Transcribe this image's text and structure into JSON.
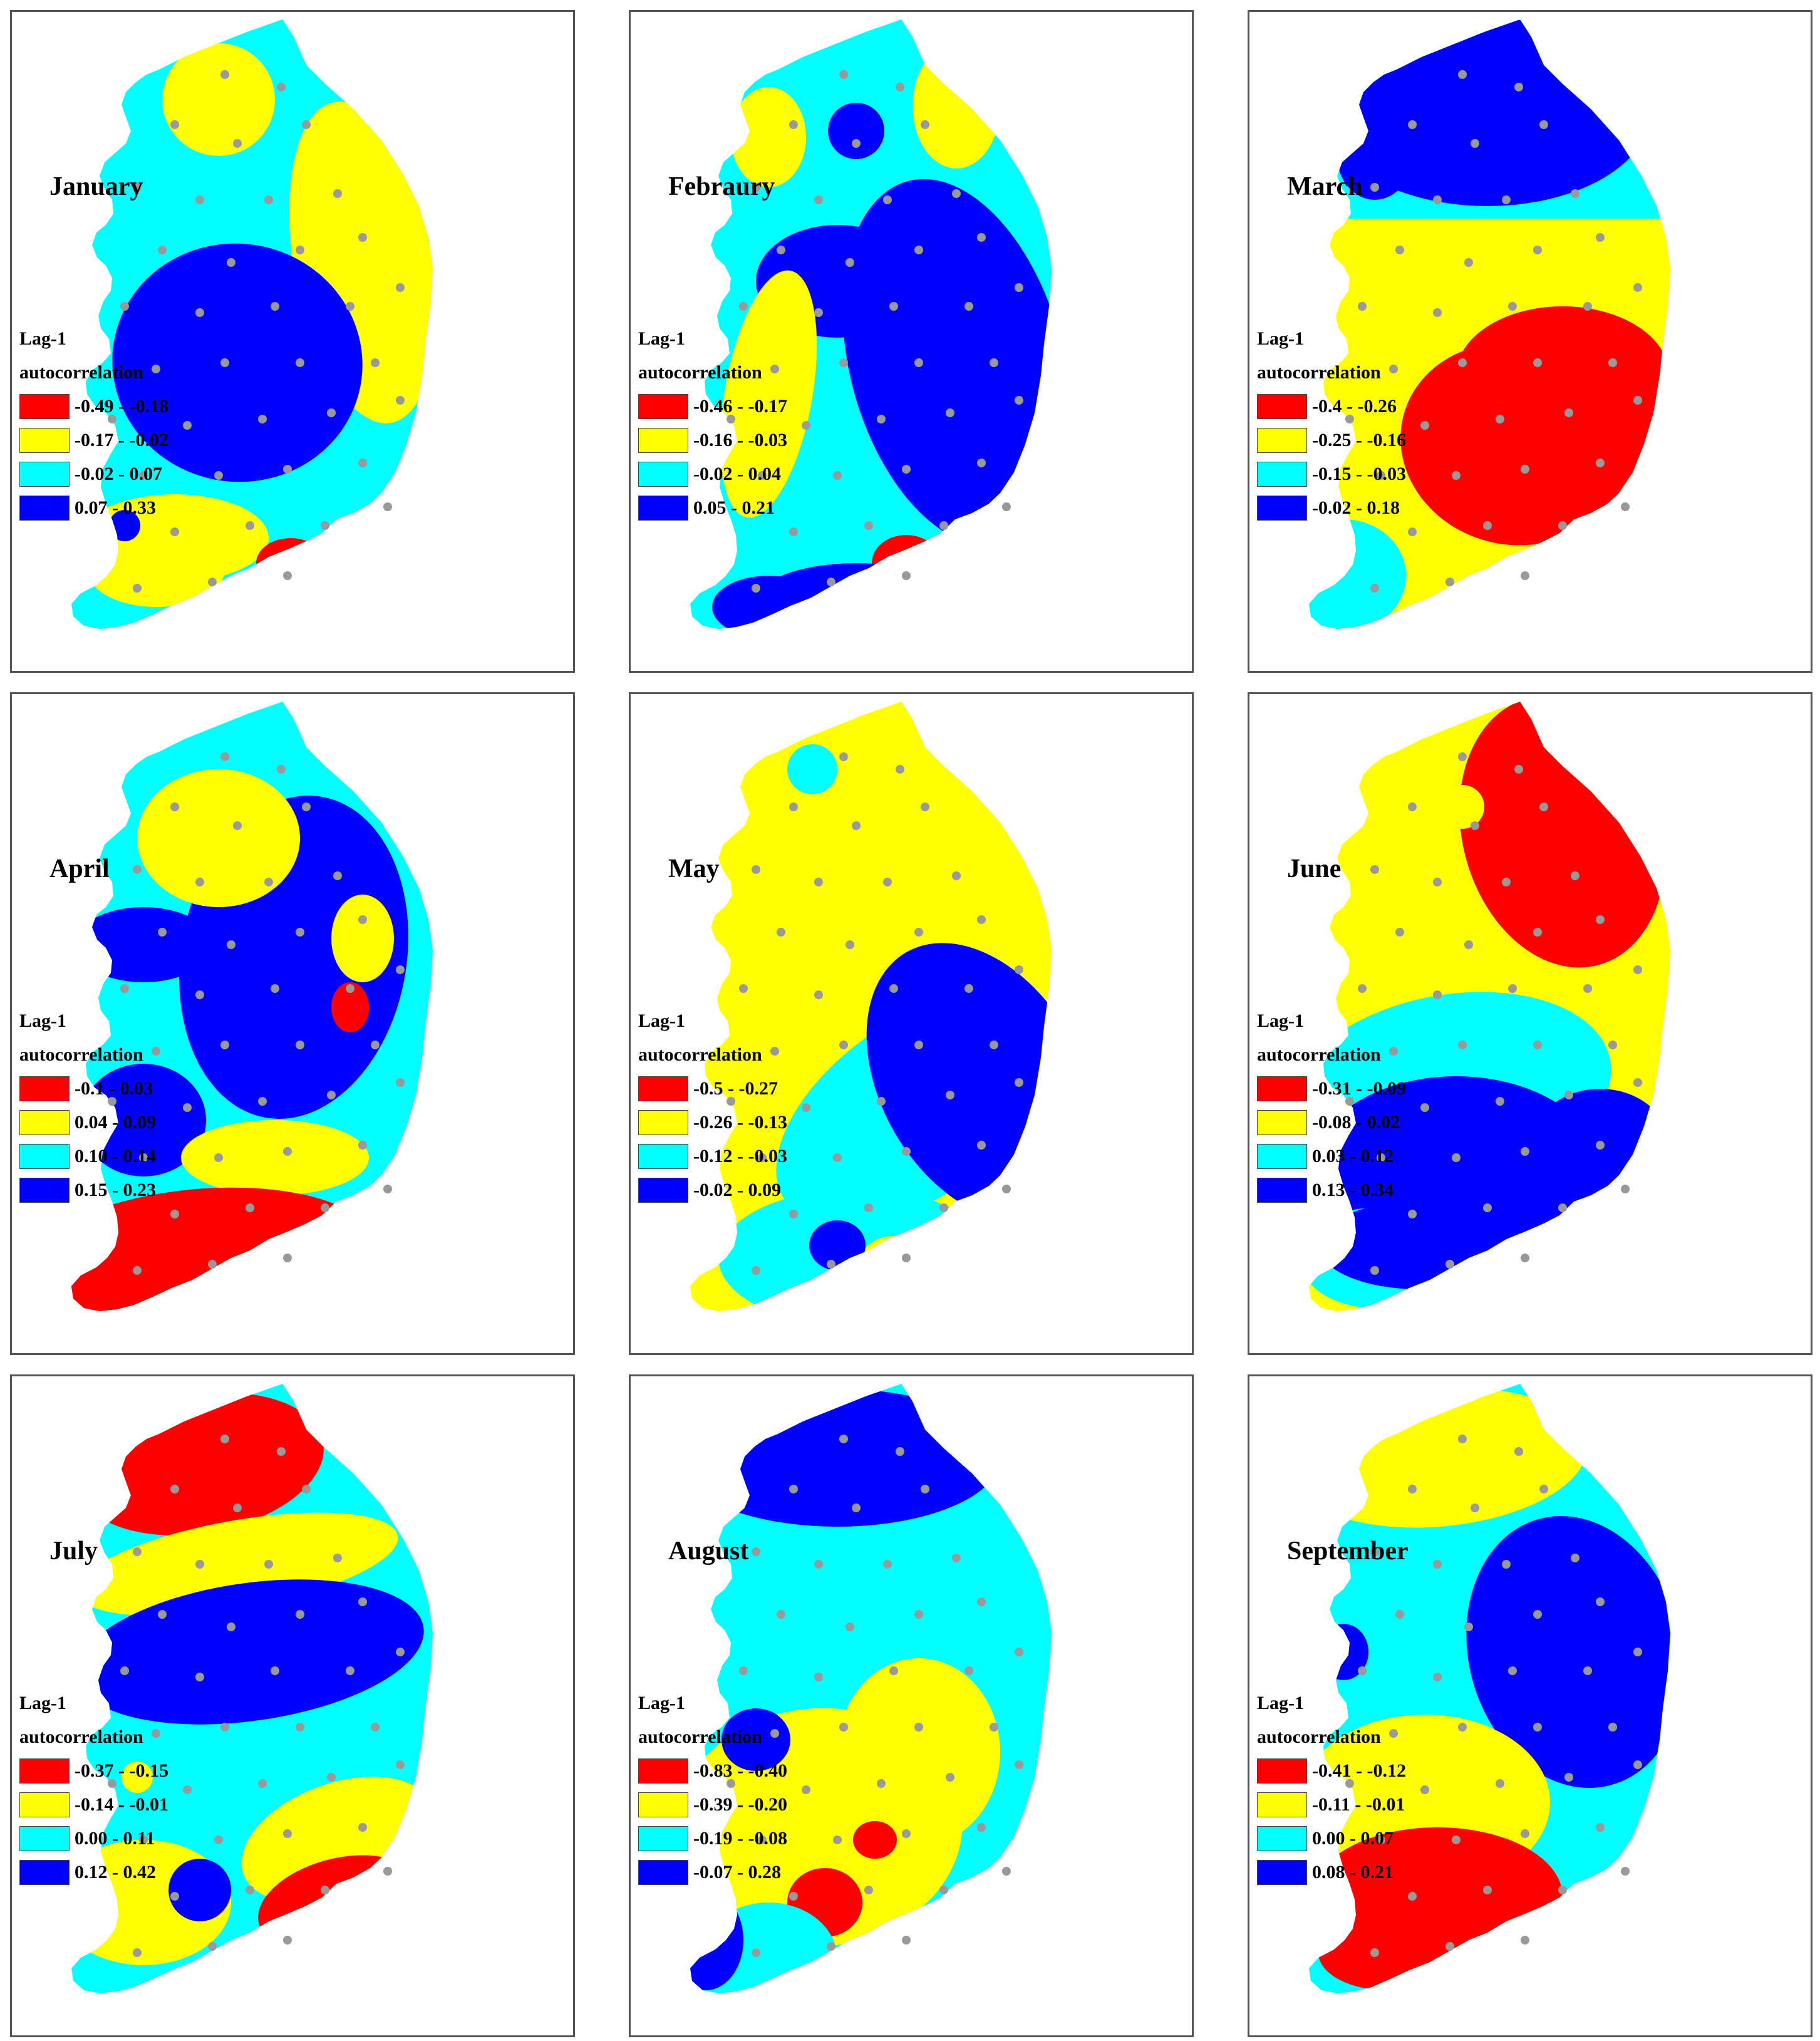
{
  "legend_colors": [
    "#ff0000",
    "#ffff00",
    "#00ffff",
    "#0000ff"
  ],
  "station_color": "#999999",
  "panels": [
    {
      "month": "January",
      "legend_title": [
        "Lag-1",
        "autocorrelation"
      ],
      "classes": [
        "-0.49 - -0.18",
        "-0.17 - -0.02",
        "-0.02 - 0.07",
        "0.07 - 0.33"
      ]
    },
    {
      "month": "Febraury",
      "legend_title": [
        "Lag-1",
        "autocorrelation"
      ],
      "classes": [
        "-0.46 - -0.17",
        "-0.16 - -0.03",
        "-0.02 - 0.04",
        "0.05 - 0.21"
      ]
    },
    {
      "month": "March",
      "legend_title": [
        "Lag-1",
        "autocorrelation"
      ],
      "classes": [
        "-0.4 - -0.26",
        "-0.25 - -0.16",
        "-0.15 - -0.03",
        "-0.02 - 0.18"
      ]
    },
    {
      "month": "April",
      "legend_title": [
        "Lag-1",
        "autocorrelation"
      ],
      "classes": [
        "-0.1 - 0.03",
        "0.04 - 0.09",
        "0.10 - 0.14",
        "0.15 - 0.23"
      ]
    },
    {
      "month": "May",
      "legend_title": [
        "Lag-1",
        "autocorrelation"
      ],
      "classes": [
        "-0.5 - -0.27",
        "-0.26 - -0.13",
        "-0.12 - -0.03",
        "-0.02 - 0.09"
      ]
    },
    {
      "month": "June",
      "legend_title": [
        "Lag-1",
        "autocorrelation"
      ],
      "classes": [
        "-0.31 - -0.09",
        "-0.08 - 0.02",
        "0.03 - 0.12",
        "0.13 - 0.34"
      ]
    },
    {
      "month": "July",
      "legend_title": [
        "Lag-1",
        "autocorrelation"
      ],
      "classes": [
        "-0.37 - -0.15",
        "-0.14 - -0.01",
        "0.00 - 0.11",
        "0.12 - 0.42"
      ]
    },
    {
      "month": "August",
      "legend_title": [
        "Lag-1",
        "autocorrelation"
      ],
      "classes": [
        "-0.83 - -0.40",
        "-0.39 - -0.20",
        "-0.19 - -0.08",
        "-0.07 - 0.28"
      ]
    },
    {
      "month": "September",
      "legend_title": [
        "Lag-1",
        "autocorrelation"
      ],
      "classes": [
        "-0.41 - -0.12",
        "-0.11 - -0.01",
        "0.00 - 0.07",
        "0.08 - 0.21"
      ]
    }
  ]
}
